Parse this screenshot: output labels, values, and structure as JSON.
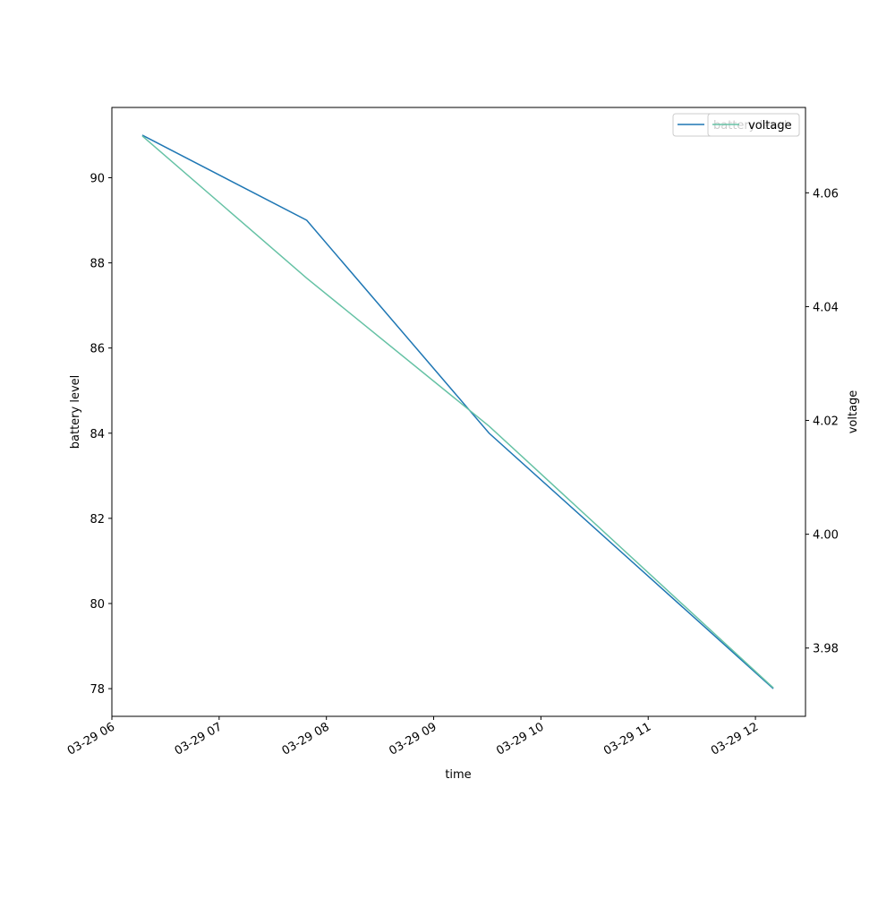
{
  "chart_data": {
    "type": "line",
    "x_label": "time",
    "y_label": "battery level",
    "y2_label": "voltage",
    "x": [
      "03-29 06:17",
      "03-29 07:49",
      "03-29 09:31",
      "03-29 12:10"
    ],
    "series": [
      {
        "name": "battery level",
        "color": "#1f77b4",
        "values": [
          91,
          89,
          84,
          78
        ]
      },
      {
        "name": "voltage",
        "color": "#66c2a5",
        "axis": "y2",
        "values": [
          4.07,
          4.045,
          4.019,
          3.973
        ]
      }
    ],
    "xlim": [
      "03-29 06:00",
      "03-29 12:28"
    ],
    "xticks": [
      "03-29 06",
      "03-29 07",
      "03-29 08",
      "03-29 09",
      "03-29 10",
      "03-29 11",
      "03-29 12"
    ],
    "ylim": [
      77.35,
      91.65
    ],
    "yticks": [
      78,
      80,
      82,
      84,
      86,
      88,
      90
    ],
    "y2lim": [
      3.968,
      4.075
    ],
    "y2ticks": [
      3.98,
      {
        "value": 4,
        "label": "4.00"
      },
      4.02,
      4.04,
      4.06
    ],
    "legend": "upper right"
  }
}
